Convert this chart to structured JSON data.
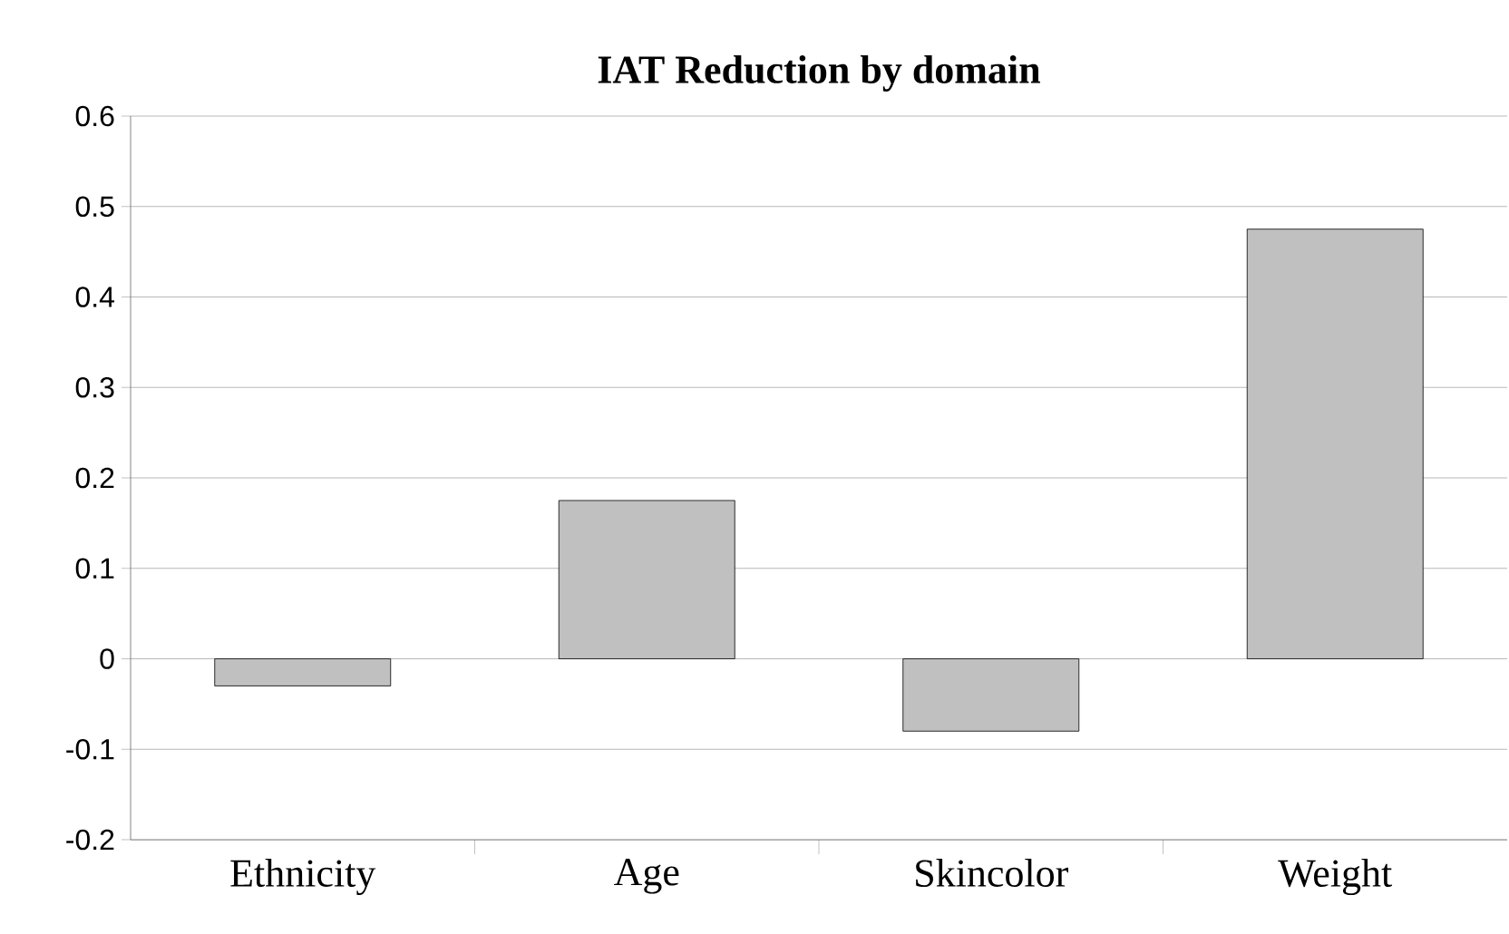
{
  "chart_data": {
    "type": "bar",
    "title": "IAT Reduction by domain",
    "categories": [
      "Ethnicity",
      "Age",
      "Skincolor",
      "Weight"
    ],
    "values": [
      -0.03,
      0.175,
      -0.08,
      0.475
    ],
    "color": "#c0c0c0",
    "ylim": [
      -0.2,
      0.6
    ],
    "yticks": [
      -0.2,
      -0.1,
      0,
      0.1,
      0.2,
      0.3,
      0.4,
      0.5,
      0.6
    ],
    "grid": "y"
  }
}
